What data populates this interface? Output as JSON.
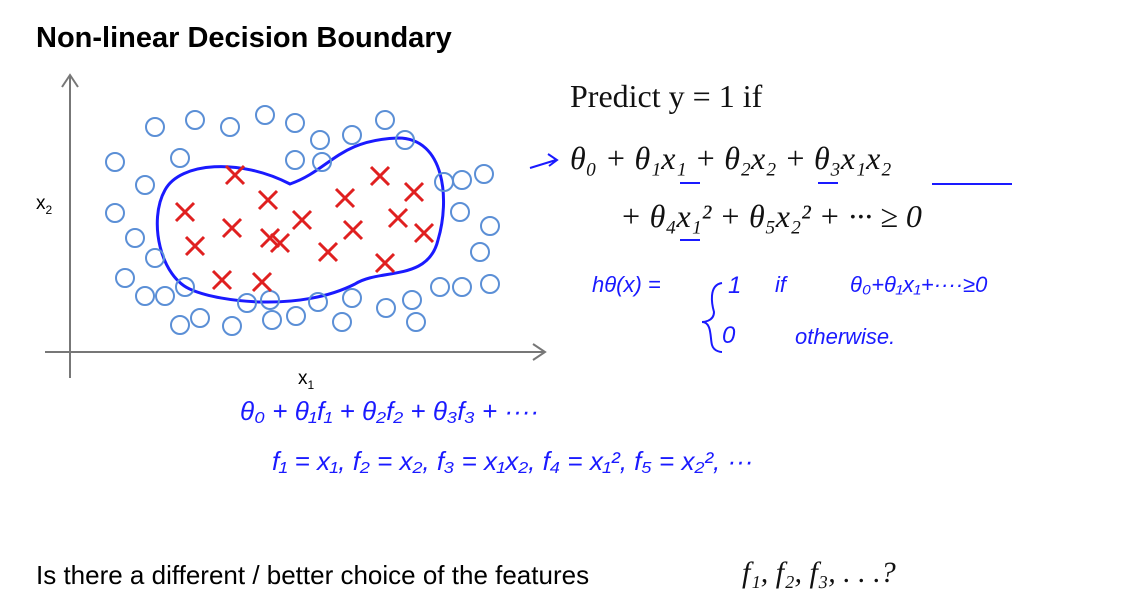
{
  "slide": {
    "title": "Non-linear Decision Boundary",
    "axis_labels": {
      "x": {
        "base": "x",
        "sub": "1"
      },
      "y": {
        "base": "x",
        "sub": "2"
      }
    },
    "predict": "Predict y = 1 if",
    "formula": [
      "θ₀ + θ₁x₁ + θ₂x₂ + θ₃x₁x₂",
      "+ θ₄x₁² + θ₅x₂² + ··· ≥ 0"
    ],
    "hypothesis": {
      "lhs": "hθ(x) =",
      "case1_value": "1",
      "case1_word": "if",
      "case1_condition": "θ₀+θ₁x₁+····≥0",
      "case2_value": "0",
      "case2_word": "otherwise."
    },
    "notes": [
      "θ₀ + θ₁f₁ + θ₂f₂ + θ₃f₃ + ····",
      "f₁ = x₁,   f₂ = x₂,   f₃ = x₁x₂,   f₄ = x₁²,   f₅ = x₂², ···"
    ],
    "question": "Is there a different / better choice of the features",
    "question_math": "f₁, f₂, f₃, . . .?"
  }
}
